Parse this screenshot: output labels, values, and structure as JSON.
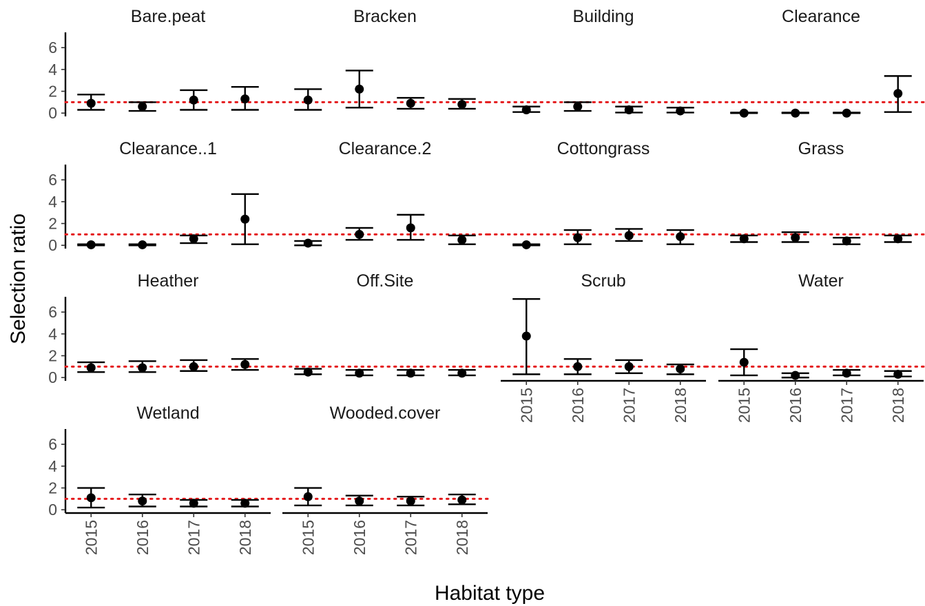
{
  "chart_data": {
    "type": "scatter",
    "description": "faceted point-range plot",
    "ylabel": "Selection ratio",
    "xlabel": "Habitat type",
    "x_categories": [
      "2015",
      "2016",
      "2017",
      "2018"
    ],
    "y_ticks": [
      0,
      2,
      4,
      6
    ],
    "ylim": [
      -0.3,
      7.4
    ],
    "reference_line": {
      "y": 1,
      "color": "#e41a1c",
      "style": "dotted"
    },
    "grid": false,
    "facets": [
      {
        "name": "Bare.peat",
        "values": [
          {
            "x": "2015",
            "y": 0.9,
            "lo": 0.3,
            "hi": 1.7
          },
          {
            "x": "2016",
            "y": 0.6,
            "lo": 0.2,
            "hi": 1.0
          },
          {
            "x": "2017",
            "y": 1.2,
            "lo": 0.3,
            "hi": 2.1
          },
          {
            "x": "2018",
            "y": 1.3,
            "lo": 0.3,
            "hi": 2.4
          }
        ]
      },
      {
        "name": "Bracken",
        "values": [
          {
            "x": "2015",
            "y": 1.2,
            "lo": 0.3,
            "hi": 2.2
          },
          {
            "x": "2016",
            "y": 2.2,
            "lo": 0.5,
            "hi": 3.9
          },
          {
            "x": "2017",
            "y": 0.9,
            "lo": 0.4,
            "hi": 1.4
          },
          {
            "x": "2018",
            "y": 0.8,
            "lo": 0.4,
            "hi": 1.3
          }
        ]
      },
      {
        "name": "Building",
        "values": [
          {
            "x": "2015",
            "y": 0.3,
            "lo": 0.1,
            "hi": 0.6
          },
          {
            "x": "2016",
            "y": 0.6,
            "lo": 0.2,
            "hi": 1.0
          },
          {
            "x": "2017",
            "y": 0.3,
            "lo": 0.05,
            "hi": 0.6
          },
          {
            "x": "2018",
            "y": 0.2,
            "lo": 0.05,
            "hi": 0.5
          }
        ]
      },
      {
        "name": "Clearance",
        "values": [
          {
            "x": "2015",
            "y": 0.0,
            "lo": 0.0,
            "hi": 0.05
          },
          {
            "x": "2016",
            "y": 0.0,
            "lo": 0.0,
            "hi": 0.05
          },
          {
            "x": "2017",
            "y": 0.0,
            "lo": 0.0,
            "hi": 0.05
          },
          {
            "x": "2018",
            "y": 1.8,
            "lo": 0.1,
            "hi": 3.4
          }
        ]
      },
      {
        "name": "Clearance..1",
        "values": [
          {
            "x": "2015",
            "y": 0.05,
            "lo": 0.0,
            "hi": 0.1
          },
          {
            "x": "2016",
            "y": 0.05,
            "lo": 0.0,
            "hi": 0.1
          },
          {
            "x": "2017",
            "y": 0.6,
            "lo": 0.2,
            "hi": 0.9
          },
          {
            "x": "2018",
            "y": 2.4,
            "lo": 0.1,
            "hi": 4.7
          }
        ]
      },
      {
        "name": "Clearance.2",
        "values": [
          {
            "x": "2015",
            "y": 0.2,
            "lo": 0.0,
            "hi": 0.4
          },
          {
            "x": "2016",
            "y": 1.0,
            "lo": 0.5,
            "hi": 1.6
          },
          {
            "x": "2017",
            "y": 1.6,
            "lo": 0.5,
            "hi": 2.8
          },
          {
            "x": "2018",
            "y": 0.5,
            "lo": 0.1,
            "hi": 0.9
          }
        ]
      },
      {
        "name": "Cottongrass",
        "values": [
          {
            "x": "2015",
            "y": 0.05,
            "lo": 0.0,
            "hi": 0.1
          },
          {
            "x": "2016",
            "y": 0.7,
            "lo": 0.1,
            "hi": 1.4
          },
          {
            "x": "2017",
            "y": 0.9,
            "lo": 0.4,
            "hi": 1.5
          },
          {
            "x": "2018",
            "y": 0.8,
            "lo": 0.1,
            "hi": 1.4
          }
        ]
      },
      {
        "name": "Grass",
        "values": [
          {
            "x": "2015",
            "y": 0.6,
            "lo": 0.3,
            "hi": 0.9
          },
          {
            "x": "2016",
            "y": 0.7,
            "lo": 0.3,
            "hi": 1.2
          },
          {
            "x": "2017",
            "y": 0.4,
            "lo": 0.1,
            "hi": 0.7
          },
          {
            "x": "2018",
            "y": 0.6,
            "lo": 0.3,
            "hi": 0.9
          }
        ]
      },
      {
        "name": "Heather",
        "values": [
          {
            "x": "2015",
            "y": 0.9,
            "lo": 0.5,
            "hi": 1.4
          },
          {
            "x": "2016",
            "y": 0.9,
            "lo": 0.5,
            "hi": 1.5
          },
          {
            "x": "2017",
            "y": 1.0,
            "lo": 0.6,
            "hi": 1.6
          },
          {
            "x": "2018",
            "y": 1.2,
            "lo": 0.7,
            "hi": 1.7
          }
        ]
      },
      {
        "name": "Off.Site",
        "values": [
          {
            "x": "2015",
            "y": 0.5,
            "lo": 0.3,
            "hi": 0.8
          },
          {
            "x": "2016",
            "y": 0.4,
            "lo": 0.2,
            "hi": 0.7
          },
          {
            "x": "2017",
            "y": 0.4,
            "lo": 0.2,
            "hi": 0.7
          },
          {
            "x": "2018",
            "y": 0.4,
            "lo": 0.2,
            "hi": 0.7
          }
        ]
      },
      {
        "name": "Scrub",
        "values": [
          {
            "x": "2015",
            "y": 3.8,
            "lo": 0.3,
            "hi": 7.2
          },
          {
            "x": "2016",
            "y": 1.0,
            "lo": 0.3,
            "hi": 1.7
          },
          {
            "x": "2017",
            "y": 1.0,
            "lo": 0.4,
            "hi": 1.6
          },
          {
            "x": "2018",
            "y": 0.8,
            "lo": 0.3,
            "hi": 1.2
          }
        ]
      },
      {
        "name": "Water",
        "values": [
          {
            "x": "2015",
            "y": 1.4,
            "lo": 0.2,
            "hi": 2.6
          },
          {
            "x": "2016",
            "y": 0.2,
            "lo": 0.0,
            "hi": 0.4
          },
          {
            "x": "2017",
            "y": 0.4,
            "lo": 0.2,
            "hi": 0.7
          },
          {
            "x": "2018",
            "y": 0.3,
            "lo": 0.1,
            "hi": 0.6
          }
        ]
      },
      {
        "name": "Wetland",
        "values": [
          {
            "x": "2015",
            "y": 1.1,
            "lo": 0.2,
            "hi": 2.0
          },
          {
            "x": "2016",
            "y": 0.8,
            "lo": 0.3,
            "hi": 1.4
          },
          {
            "x": "2017",
            "y": 0.6,
            "lo": 0.3,
            "hi": 0.9
          },
          {
            "x": "2018",
            "y": 0.6,
            "lo": 0.3,
            "hi": 0.9
          }
        ]
      },
      {
        "name": "Wooded.cover",
        "values": [
          {
            "x": "2015",
            "y": 1.2,
            "lo": 0.4,
            "hi": 2.0
          },
          {
            "x": "2016",
            "y": 0.8,
            "lo": 0.4,
            "hi": 1.3
          },
          {
            "x": "2017",
            "y": 0.8,
            "lo": 0.4,
            "hi": 1.2
          },
          {
            "x": "2018",
            "y": 0.9,
            "lo": 0.5,
            "hi": 1.4
          }
        ]
      }
    ]
  }
}
